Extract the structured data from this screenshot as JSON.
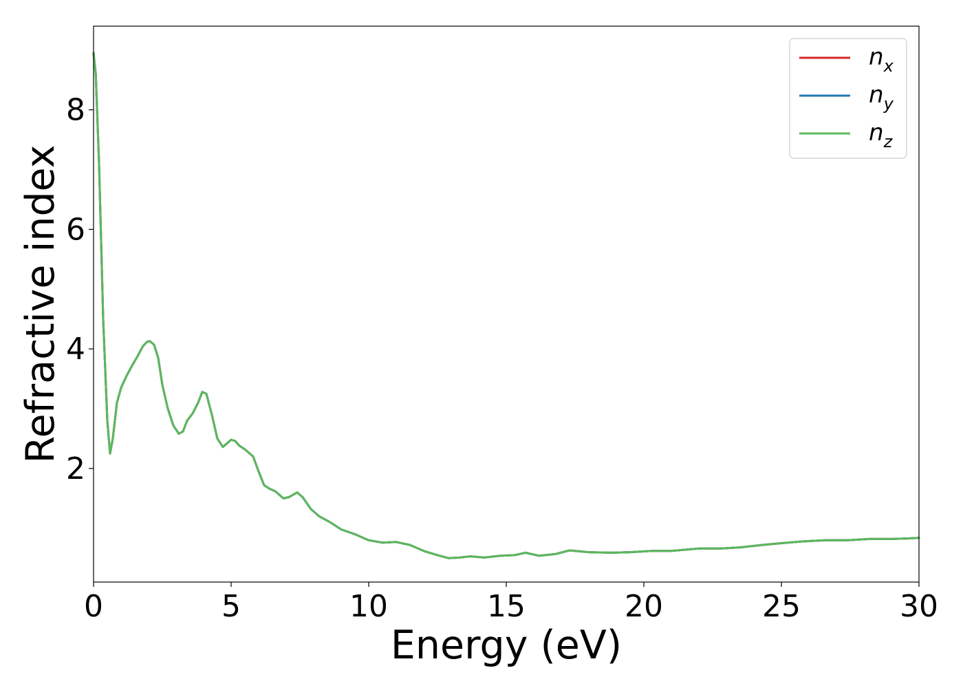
{
  "chart_data": {
    "type": "line",
    "xlabel": "Energy (eV)",
    "ylabel": "Refractive index",
    "xlim": [
      0,
      30
    ],
    "ylim": [
      0.1,
      9.4
    ],
    "xticks": [
      "0",
      "5",
      "10",
      "15",
      "20",
      "25",
      "30"
    ],
    "yticks": [
      "2",
      "4",
      "6",
      "8"
    ],
    "grid": false,
    "legend_position": "top-right",
    "legend": [
      {
        "base": "n",
        "sub": "x",
        "color": "#d62728"
      },
      {
        "base": "n",
        "sub": "y",
        "color": "#1f77b4"
      },
      {
        "base": "n",
        "sub": "z",
        "color": "#5cb85c"
      }
    ],
    "series": [
      {
        "name": "n_x",
        "color": "#d62728",
        "x": [
          0,
          0.08,
          0.2,
          0.35,
          0.5,
          0.6,
          0.7,
          0.85,
          1.0,
          1.2,
          1.4,
          1.6,
          1.8,
          1.95,
          2.05,
          2.2,
          2.35,
          2.5,
          2.7,
          2.9,
          3.1,
          3.25,
          3.4,
          3.6,
          3.8,
          3.95,
          4.1,
          4.3,
          4.5,
          4.7,
          4.85,
          5.0,
          5.15,
          5.3,
          5.5,
          5.8,
          6.0,
          6.2,
          6.4,
          6.6,
          6.9,
          7.1,
          7.4,
          7.6,
          7.9,
          8.2,
          8.6,
          9.0,
          9.5,
          10.0,
          10.5,
          11.0,
          11.5,
          12.0,
          12.5,
          12.9,
          13.3,
          13.7,
          14.2,
          14.8,
          15.3,
          15.7,
          16.2,
          16.8,
          17.3,
          18.0,
          18.8,
          19.5,
          20.3,
          21.0,
          22.0,
          22.8,
          23.5,
          24.3,
          25.0,
          25.8,
          26.6,
          27.4,
          28.2,
          29.0,
          29.6,
          30.0
        ],
        "y": [
          8.95,
          8.6,
          7.1,
          4.5,
          2.8,
          2.25,
          2.5,
          3.1,
          3.35,
          3.55,
          3.72,
          3.88,
          4.05,
          4.12,
          4.13,
          4.07,
          3.85,
          3.4,
          3.0,
          2.72,
          2.58,
          2.62,
          2.8,
          2.92,
          3.1,
          3.28,
          3.25,
          2.9,
          2.5,
          2.36,
          2.42,
          2.48,
          2.46,
          2.38,
          2.32,
          2.2,
          1.95,
          1.72,
          1.66,
          1.62,
          1.5,
          1.52,
          1.6,
          1.52,
          1.32,
          1.2,
          1.1,
          0.98,
          0.9,
          0.8,
          0.76,
          0.77,
          0.72,
          0.62,
          0.55,
          0.5,
          0.51,
          0.53,
          0.51,
          0.54,
          0.55,
          0.59,
          0.54,
          0.57,
          0.63,
          0.6,
          0.59,
          0.6,
          0.62,
          0.62,
          0.66,
          0.66,
          0.68,
          0.72,
          0.75,
          0.78,
          0.8,
          0.8,
          0.82,
          0.82,
          0.83,
          0.84
        ]
      },
      {
        "name": "n_y",
        "color": "#1f77b4",
        "x": [
          0,
          0.08,
          0.2,
          0.35,
          0.5,
          0.6,
          0.7,
          0.85,
          1.0,
          1.2,
          1.4,
          1.6,
          1.8,
          1.95,
          2.05,
          2.2,
          2.35,
          2.5,
          2.7,
          2.9,
          3.1,
          3.25,
          3.4,
          3.6,
          3.8,
          3.95,
          4.1,
          4.3,
          4.5,
          4.7,
          4.85,
          5.0,
          5.15,
          5.3,
          5.5,
          5.8,
          6.0,
          6.2,
          6.4,
          6.6,
          6.9,
          7.1,
          7.4,
          7.6,
          7.9,
          8.2,
          8.6,
          9.0,
          9.5,
          10.0,
          10.5,
          11.0,
          11.5,
          12.0,
          12.5,
          12.9,
          13.3,
          13.7,
          14.2,
          14.8,
          15.3,
          15.7,
          16.2,
          16.8,
          17.3,
          18.0,
          18.8,
          19.5,
          20.3,
          21.0,
          22.0,
          22.8,
          23.5,
          24.3,
          25.0,
          25.8,
          26.6,
          27.4,
          28.2,
          29.0,
          29.6,
          30.0
        ],
        "y": [
          8.95,
          8.6,
          7.1,
          4.5,
          2.8,
          2.25,
          2.5,
          3.1,
          3.35,
          3.55,
          3.72,
          3.88,
          4.05,
          4.12,
          4.13,
          4.07,
          3.85,
          3.4,
          3.0,
          2.72,
          2.58,
          2.62,
          2.8,
          2.92,
          3.1,
          3.28,
          3.25,
          2.9,
          2.5,
          2.36,
          2.42,
          2.48,
          2.46,
          2.38,
          2.32,
          2.2,
          1.95,
          1.72,
          1.66,
          1.62,
          1.5,
          1.52,
          1.6,
          1.52,
          1.32,
          1.2,
          1.1,
          0.98,
          0.9,
          0.8,
          0.76,
          0.77,
          0.72,
          0.62,
          0.55,
          0.5,
          0.51,
          0.53,
          0.51,
          0.54,
          0.55,
          0.59,
          0.54,
          0.57,
          0.63,
          0.6,
          0.59,
          0.6,
          0.62,
          0.62,
          0.66,
          0.66,
          0.68,
          0.72,
          0.75,
          0.78,
          0.8,
          0.8,
          0.82,
          0.82,
          0.83,
          0.84
        ]
      },
      {
        "name": "n_z",
        "color": "#5cb85c",
        "x": [
          0,
          0.08,
          0.2,
          0.35,
          0.5,
          0.6,
          0.7,
          0.85,
          1.0,
          1.2,
          1.4,
          1.6,
          1.8,
          1.95,
          2.05,
          2.2,
          2.35,
          2.5,
          2.7,
          2.9,
          3.1,
          3.25,
          3.4,
          3.6,
          3.8,
          3.95,
          4.1,
          4.3,
          4.5,
          4.7,
          4.85,
          5.0,
          5.15,
          5.3,
          5.5,
          5.8,
          6.0,
          6.2,
          6.4,
          6.6,
          6.9,
          7.1,
          7.4,
          7.6,
          7.9,
          8.2,
          8.6,
          9.0,
          9.5,
          10.0,
          10.5,
          11.0,
          11.5,
          12.0,
          12.5,
          12.9,
          13.3,
          13.7,
          14.2,
          14.8,
          15.3,
          15.7,
          16.2,
          16.8,
          17.3,
          18.0,
          18.8,
          19.5,
          20.3,
          21.0,
          22.0,
          22.8,
          23.5,
          24.3,
          25.0,
          25.8,
          26.6,
          27.4,
          28.2,
          29.0,
          29.6,
          30.0
        ],
        "y": [
          8.95,
          8.6,
          7.1,
          4.5,
          2.8,
          2.25,
          2.5,
          3.1,
          3.35,
          3.55,
          3.72,
          3.88,
          4.05,
          4.12,
          4.13,
          4.07,
          3.85,
          3.4,
          3.0,
          2.72,
          2.58,
          2.62,
          2.8,
          2.92,
          3.1,
          3.28,
          3.25,
          2.9,
          2.5,
          2.36,
          2.42,
          2.48,
          2.46,
          2.38,
          2.32,
          2.2,
          1.95,
          1.72,
          1.66,
          1.62,
          1.5,
          1.52,
          1.6,
          1.52,
          1.32,
          1.2,
          1.1,
          0.98,
          0.9,
          0.8,
          0.76,
          0.77,
          0.72,
          0.62,
          0.55,
          0.5,
          0.51,
          0.53,
          0.51,
          0.54,
          0.55,
          0.59,
          0.54,
          0.57,
          0.63,
          0.6,
          0.59,
          0.6,
          0.62,
          0.62,
          0.66,
          0.66,
          0.68,
          0.72,
          0.75,
          0.78,
          0.8,
          0.8,
          0.82,
          0.82,
          0.83,
          0.84
        ]
      }
    ]
  }
}
